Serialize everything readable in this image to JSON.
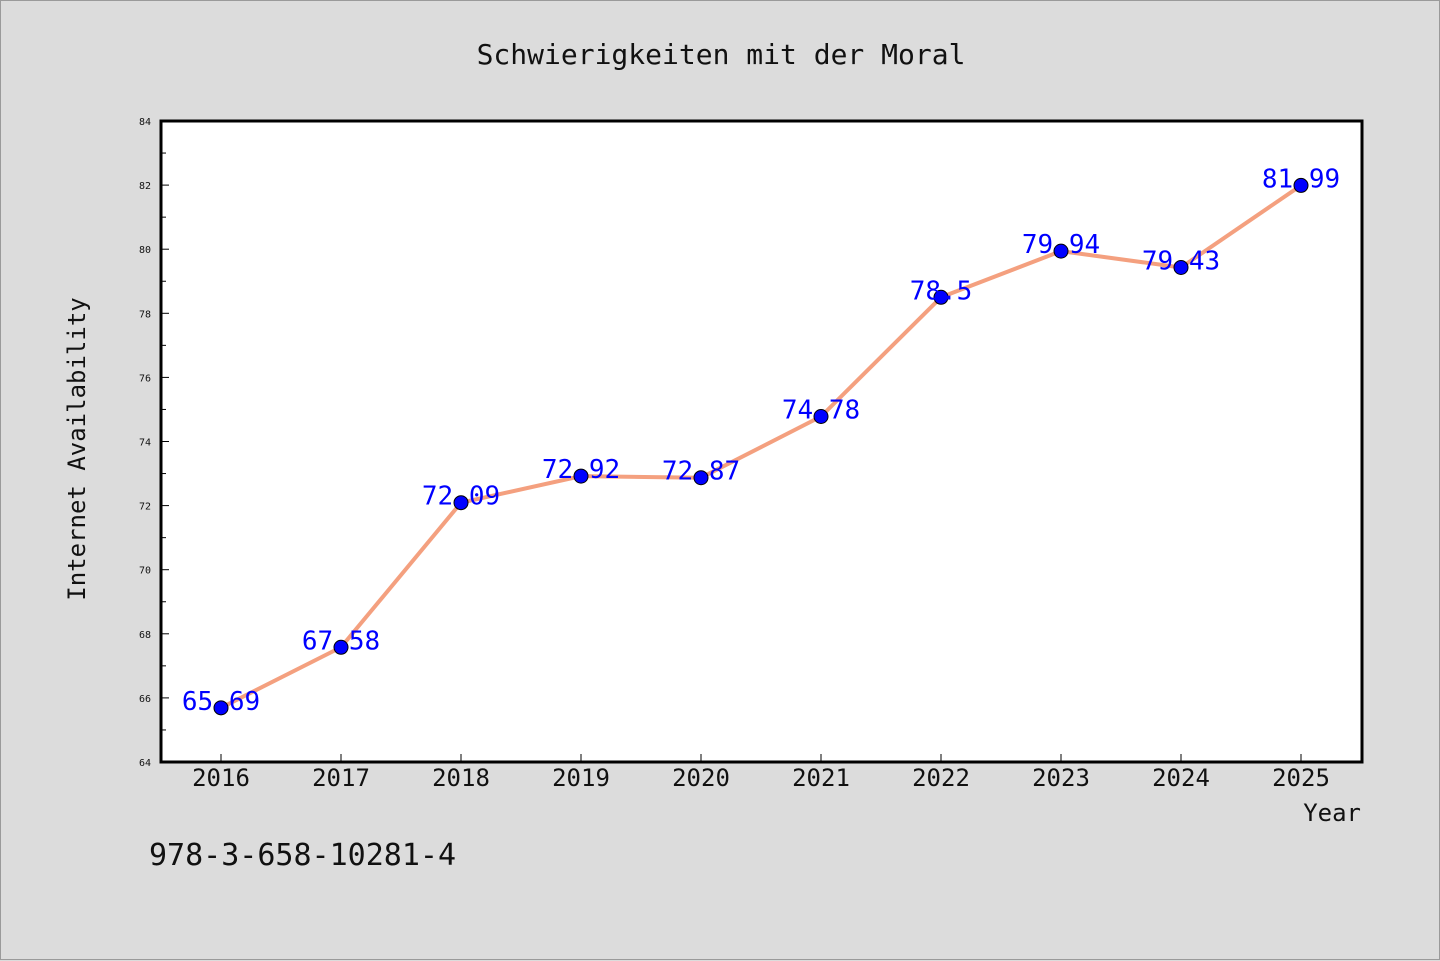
{
  "chart_data": {
    "type": "line",
    "title": "Schwierigkeiten mit der Moral",
    "xlabel": "Year",
    "ylabel": "Internet Availability",
    "x": [
      "2016",
      "2017",
      "2018",
      "2019",
      "2020",
      "2021",
      "2022",
      "2023",
      "2024",
      "2025"
    ],
    "series": [
      {
        "values": [
          65.69,
          67.58,
          72.09,
          72.92,
          72.87,
          74.78,
          78.5,
          79.94,
          79.43,
          81.99
        ],
        "data_labels": [
          "65.69",
          "67.58",
          "72.09",
          "72.92",
          "72.87",
          "74.78",
          "78.5",
          "79.94",
          "79.43",
          "81.99"
        ]
      }
    ],
    "ylim": [
      64,
      84
    ],
    "yticks": [
      "64",
      "66",
      "68",
      "70",
      "72",
      "74",
      "76",
      "78",
      "80",
      "82",
      "84"
    ],
    "grid": false,
    "legend": "none",
    "colors": {
      "line": "#f4a07f",
      "marker": "#0000ff",
      "data_label": "#0000ff",
      "background": "#dcdcdc",
      "plot_background": "#ffffff"
    }
  },
  "footnote": "978-3-658-10281-4"
}
